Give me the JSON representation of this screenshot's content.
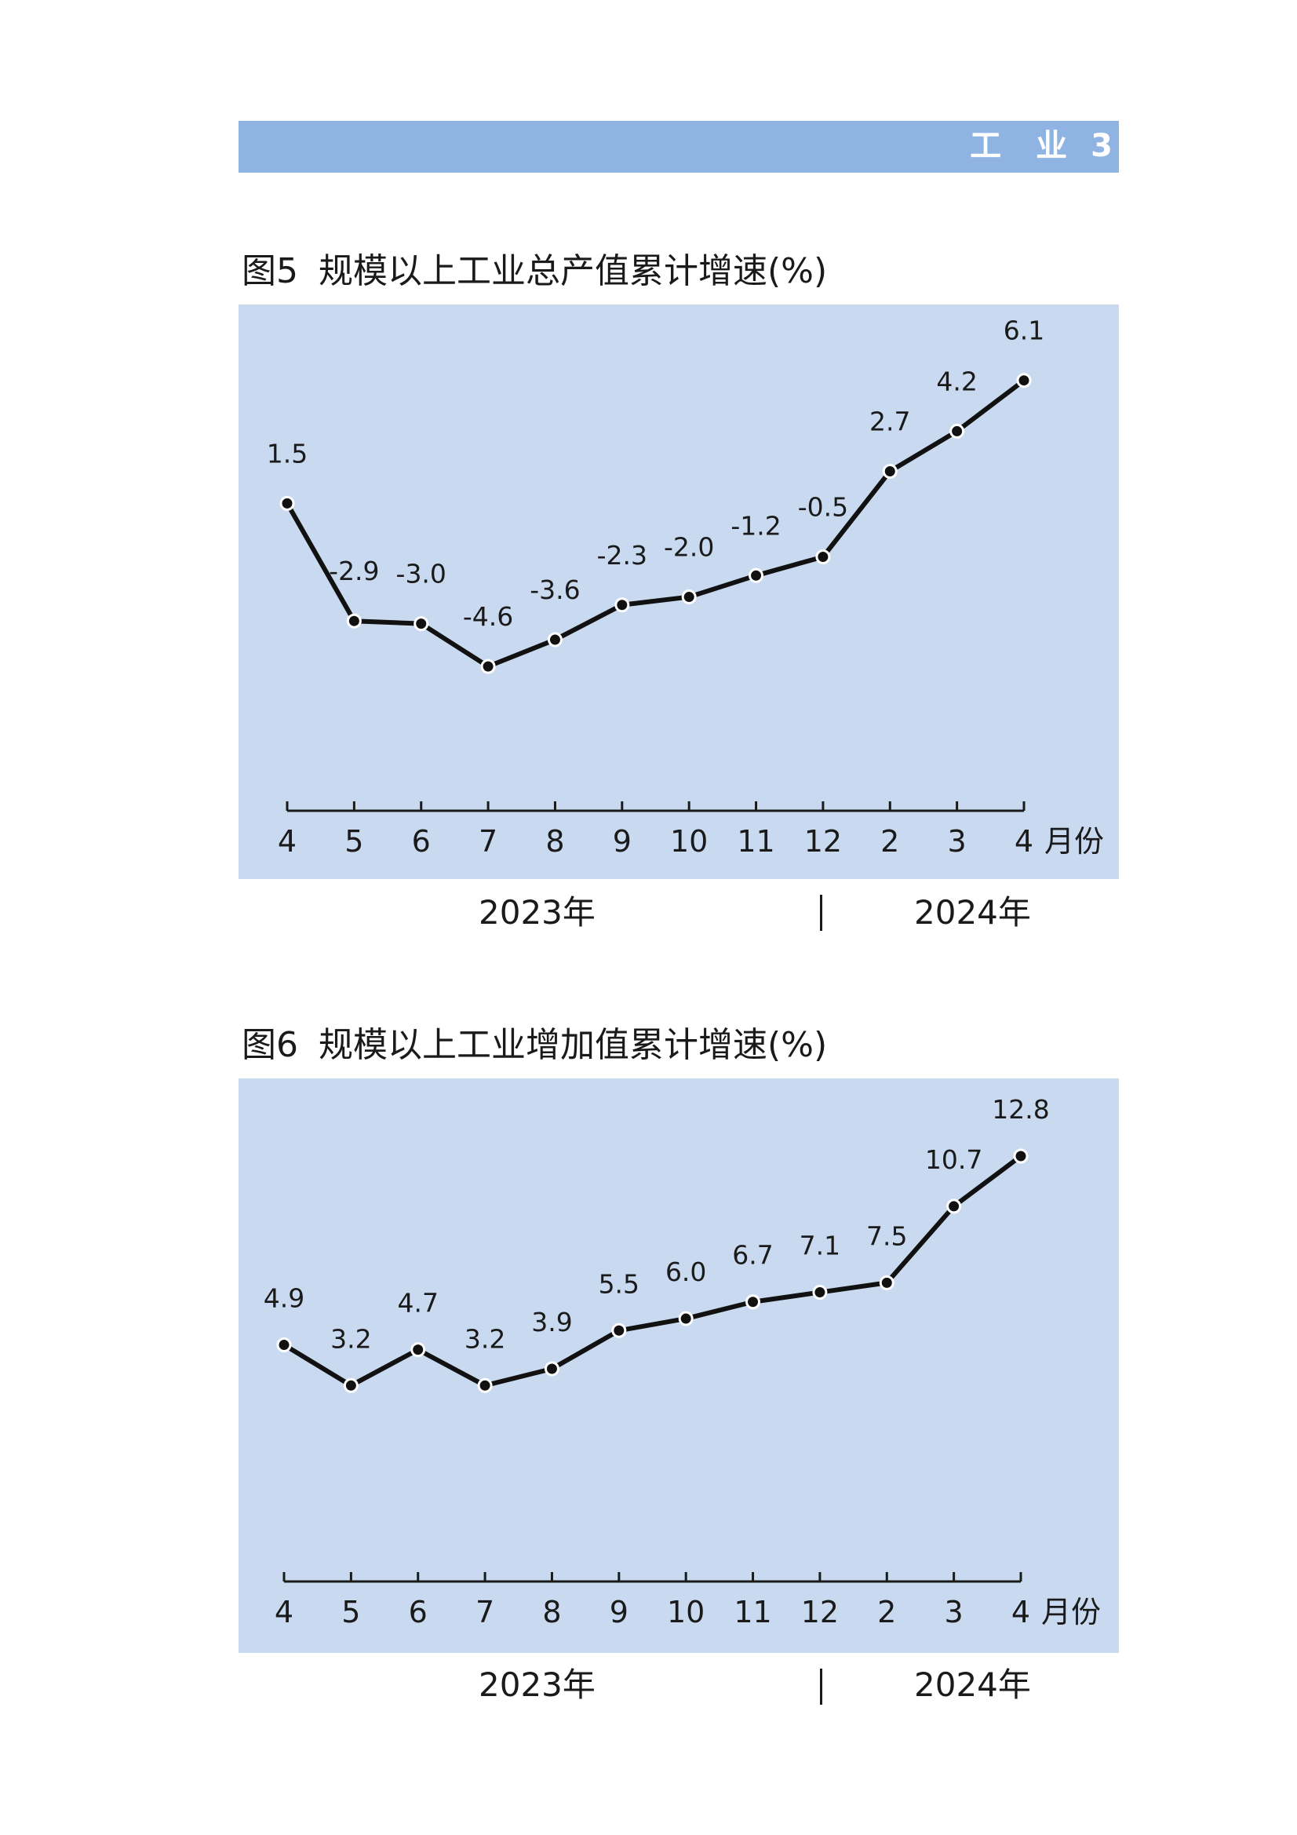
{
  "header": {
    "section": "工　业",
    "page": "3"
  },
  "figures": [
    {
      "number": "图5",
      "title": "规模以上工业总产值累计增速(%)"
    },
    {
      "number": "图6",
      "title": "规模以上工业增加值累计增速(%)"
    }
  ],
  "chart_data": [
    {
      "type": "line",
      "title": "规模以上工业总产值累计增速(%)",
      "categories": [
        "4",
        "5",
        "6",
        "7",
        "8",
        "9",
        "10",
        "11",
        "12",
        "2",
        "3",
        "4"
      ],
      "x_unit": "月份",
      "year_groups": [
        "2023年",
        "2024年"
      ],
      "series": [
        {
          "values": [
            1.5,
            -2.9,
            -3.0,
            -4.6,
            -3.6,
            -2.3,
            -2.0,
            -1.2,
            -0.5,
            2.7,
            4.2,
            6.1
          ]
        }
      ],
      "labels": [
        "1.5",
        "-2.9",
        "-3.0",
        "-4.6",
        "-3.6",
        "-2.3",
        "-2.0",
        "-1.2",
        "-0.5",
        "2.7",
        "4.2",
        "6.1"
      ],
      "ylim": [
        -10,
        8
      ],
      "grid": false,
      "line_color": "#111111",
      "background": "#c9daf0"
    },
    {
      "type": "line",
      "title": "规模以上工业增加值累计增速(%)",
      "categories": [
        "4",
        "5",
        "6",
        "7",
        "8",
        "9",
        "10",
        "11",
        "12",
        "2",
        "3",
        "4"
      ],
      "x_unit": "月份",
      "year_groups": [
        "2023年",
        "2024年"
      ],
      "series": [
        {
          "values": [
            4.9,
            3.2,
            4.7,
            3.2,
            3.9,
            5.5,
            6.0,
            6.7,
            7.1,
            7.5,
            10.7,
            12.8
          ]
        }
      ],
      "labels": [
        "4.9",
        "3.2",
        "4.7",
        "3.2",
        "3.9",
        "5.5",
        "6.0",
        "6.7",
        "7.1",
        "7.5",
        "10.7",
        "12.8"
      ],
      "ylim": [
        -5,
        15
      ],
      "grid": false,
      "line_color": "#111111",
      "background": "#c9daf0"
    }
  ],
  "colors": {
    "header_bar": "#8fb4e3",
    "plot_background": "#c9daf0",
    "line": "#111111"
  }
}
